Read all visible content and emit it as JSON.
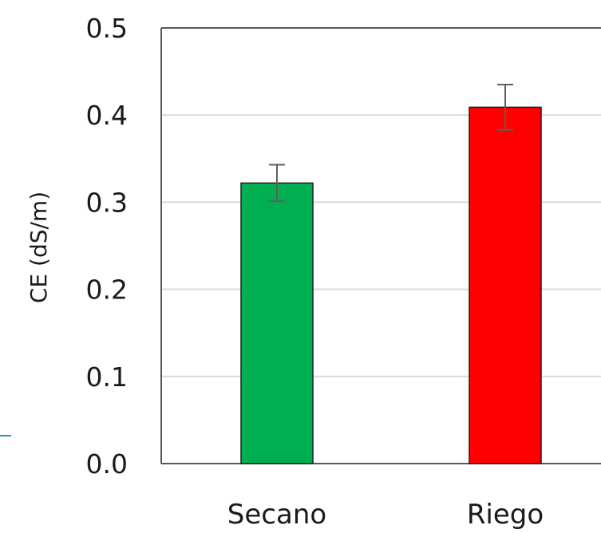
{
  "chart_data": {
    "type": "bar",
    "title": "",
    "xlabel": "",
    "ylabel": "CE (dS/m)",
    "ylim": [
      0,
      0.5
    ],
    "yticks": [
      0.0,
      0.1,
      0.2,
      0.3,
      0.4,
      0.5
    ],
    "ytick_labels": [
      "0.0",
      "0.1",
      "0.2",
      "0.3",
      "0.4",
      "0.5"
    ],
    "categories": [
      "Secano",
      "Riego"
    ],
    "values": [
      0.322,
      0.409
    ],
    "error": [
      0.021,
      0.026
    ],
    "bar_colors": [
      "#00b050",
      "#ff0000"
    ],
    "grid": true,
    "legend": false
  },
  "colors": {
    "axis": "#595959",
    "grid": "#d9d9d9",
    "bar_outline": "#1f1f1f",
    "error_bar": "#5f5f5f",
    "side_accent": "#1f9aa8"
  }
}
